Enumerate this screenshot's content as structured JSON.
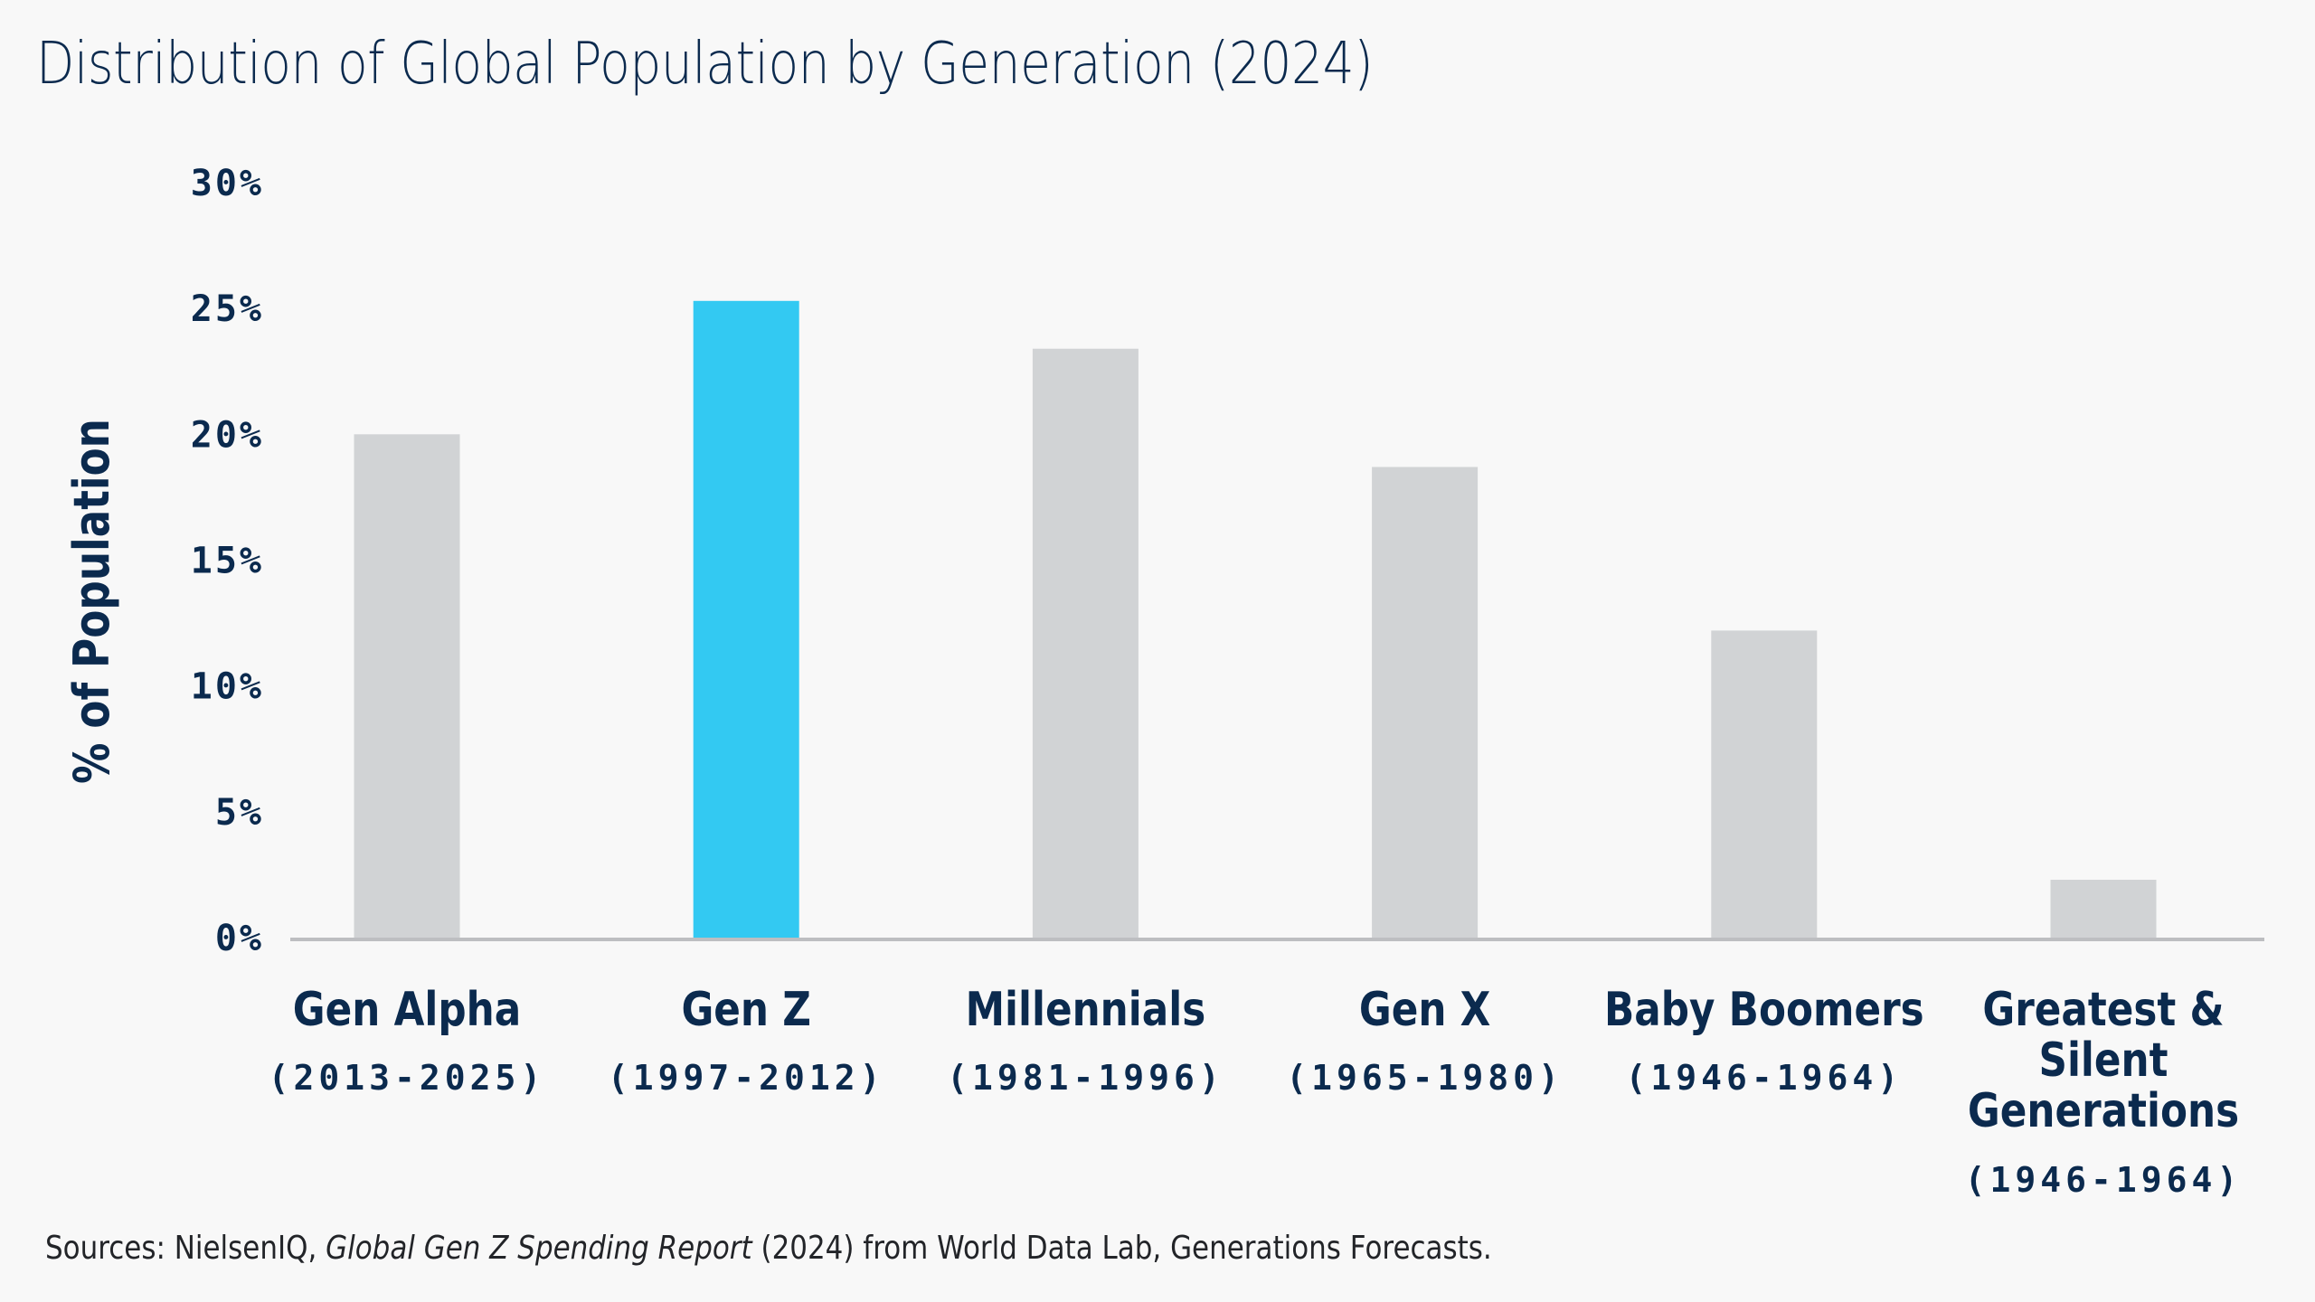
{
  "colors": {
    "background": "#F8F8F8",
    "text": "#0B2A4E",
    "bar_default": "#D1D3D5",
    "bar_highlight": "#33C9F2",
    "axis": "#BDBEC1"
  },
  "footer": {
    "prefix": "Sources: NielsenIQ, ",
    "report_title": "Global Gen Z Spending Report",
    "suffix": " (2024) from World Data Lab, Generations Forecasts."
  },
  "chart_data": {
    "type": "bar",
    "title": "Distribution of Global Population by Generation (2024)",
    "xlabel": "",
    "ylabel": "% of Population",
    "ylim": [
      0,
      30
    ],
    "yticks": [
      0,
      5,
      10,
      15,
      20,
      25,
      30
    ],
    "ytick_labels": [
      "0%",
      "5%",
      "10%",
      "15%",
      "20%",
      "25%",
      "30%"
    ],
    "grid": false,
    "legend": "none",
    "categories": [
      {
        "name_lines": [
          "Gen Alpha"
        ],
        "years": "(2013-2025)"
      },
      {
        "name_lines": [
          "Gen Z"
        ],
        "years": "(1997-2012)"
      },
      {
        "name_lines": [
          "Millennials"
        ],
        "years": "(1981-1996)"
      },
      {
        "name_lines": [
          "Gen X"
        ],
        "years": "(1965-1980)"
      },
      {
        "name_lines": [
          "Baby Boomers"
        ],
        "years": "(1946-1964)"
      },
      {
        "name_lines": [
          "Greatest &",
          "Silent",
          "Generations"
        ],
        "years": "(1946-1964)"
      }
    ],
    "values": [
      20.0,
      25.3,
      23.4,
      18.7,
      12.2,
      2.3
    ],
    "highlight_index": 1
  }
}
